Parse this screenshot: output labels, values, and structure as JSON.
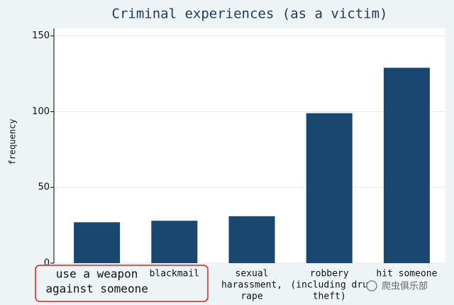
{
  "chart_data": {
    "type": "bar",
    "title": "Criminal experiences (as a victim)",
    "y_label": "frequency",
    "categories": [
      [
        "use a weapon",
        "against someone"
      ],
      [
        "blackmail"
      ],
      [
        "sexual",
        "harassment,",
        "rape"
      ],
      [
        "robbery",
        "(including dru",
        "theft)"
      ],
      [
        "hit someone"
      ]
    ],
    "values": [
      27,
      28,
      31,
      99,
      129
    ],
    "color": "#1a476f",
    "ylim": [
      0,
      155
    ],
    "yticks": [
      0,
      50,
      100,
      150
    ],
    "grid": true,
    "watermark": "爬虫俱乐部"
  }
}
